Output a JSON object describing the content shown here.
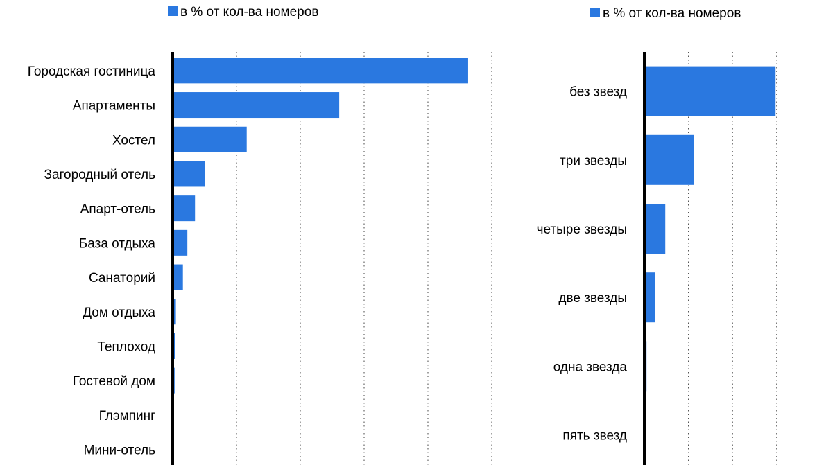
{
  "colors": {
    "bar": "#2a78e0",
    "axis": "#000000",
    "grid": "#444444"
  },
  "chart_data": [
    {
      "type": "bar",
      "orientation": "horizontal",
      "legend": {
        "position": "top",
        "entries": [
          "в % от кол-ва номеров"
        ]
      },
      "categories": [
        "Городская гостиница",
        "Апартаменты",
        "Хостел",
        "Загородный отель",
        "Апарт-отель",
        "База отдыха",
        "Санаторий",
        "Дом отдыха",
        "Теплоход",
        "Гостевой дом",
        "Глэмпинг",
        "Мини-отель"
      ],
      "series": [
        {
          "name": "в % от кол-ва номеров",
          "values": [
            46.3,
            26.1,
            11.6,
            5.0,
            3.5,
            2.3,
            1.6,
            0.5,
            0.4,
            0.3,
            0.0,
            0.0
          ]
        }
      ],
      "xlim": [
        0,
        50
      ],
      "grid": "vertical dotted",
      "tick_labels_visible": false
    },
    {
      "type": "bar",
      "orientation": "horizontal",
      "legend": {
        "position": "top",
        "entries": [
          "в % от кол-ва номеров"
        ]
      },
      "categories": [
        "без звезд",
        "три звезды",
        "четыре звезды",
        "две звезды",
        "одна звезда",
        "пять звезд"
      ],
      "series": [
        {
          "name": "в % от кол-ва номеров",
          "values": [
            59.5,
            22.5,
            9.5,
            4.8,
            1.0,
            0.0
          ]
        }
      ],
      "xlim": [
        0,
        60
      ],
      "grid": "vertical dotted",
      "tick_labels_visible": false
    }
  ]
}
